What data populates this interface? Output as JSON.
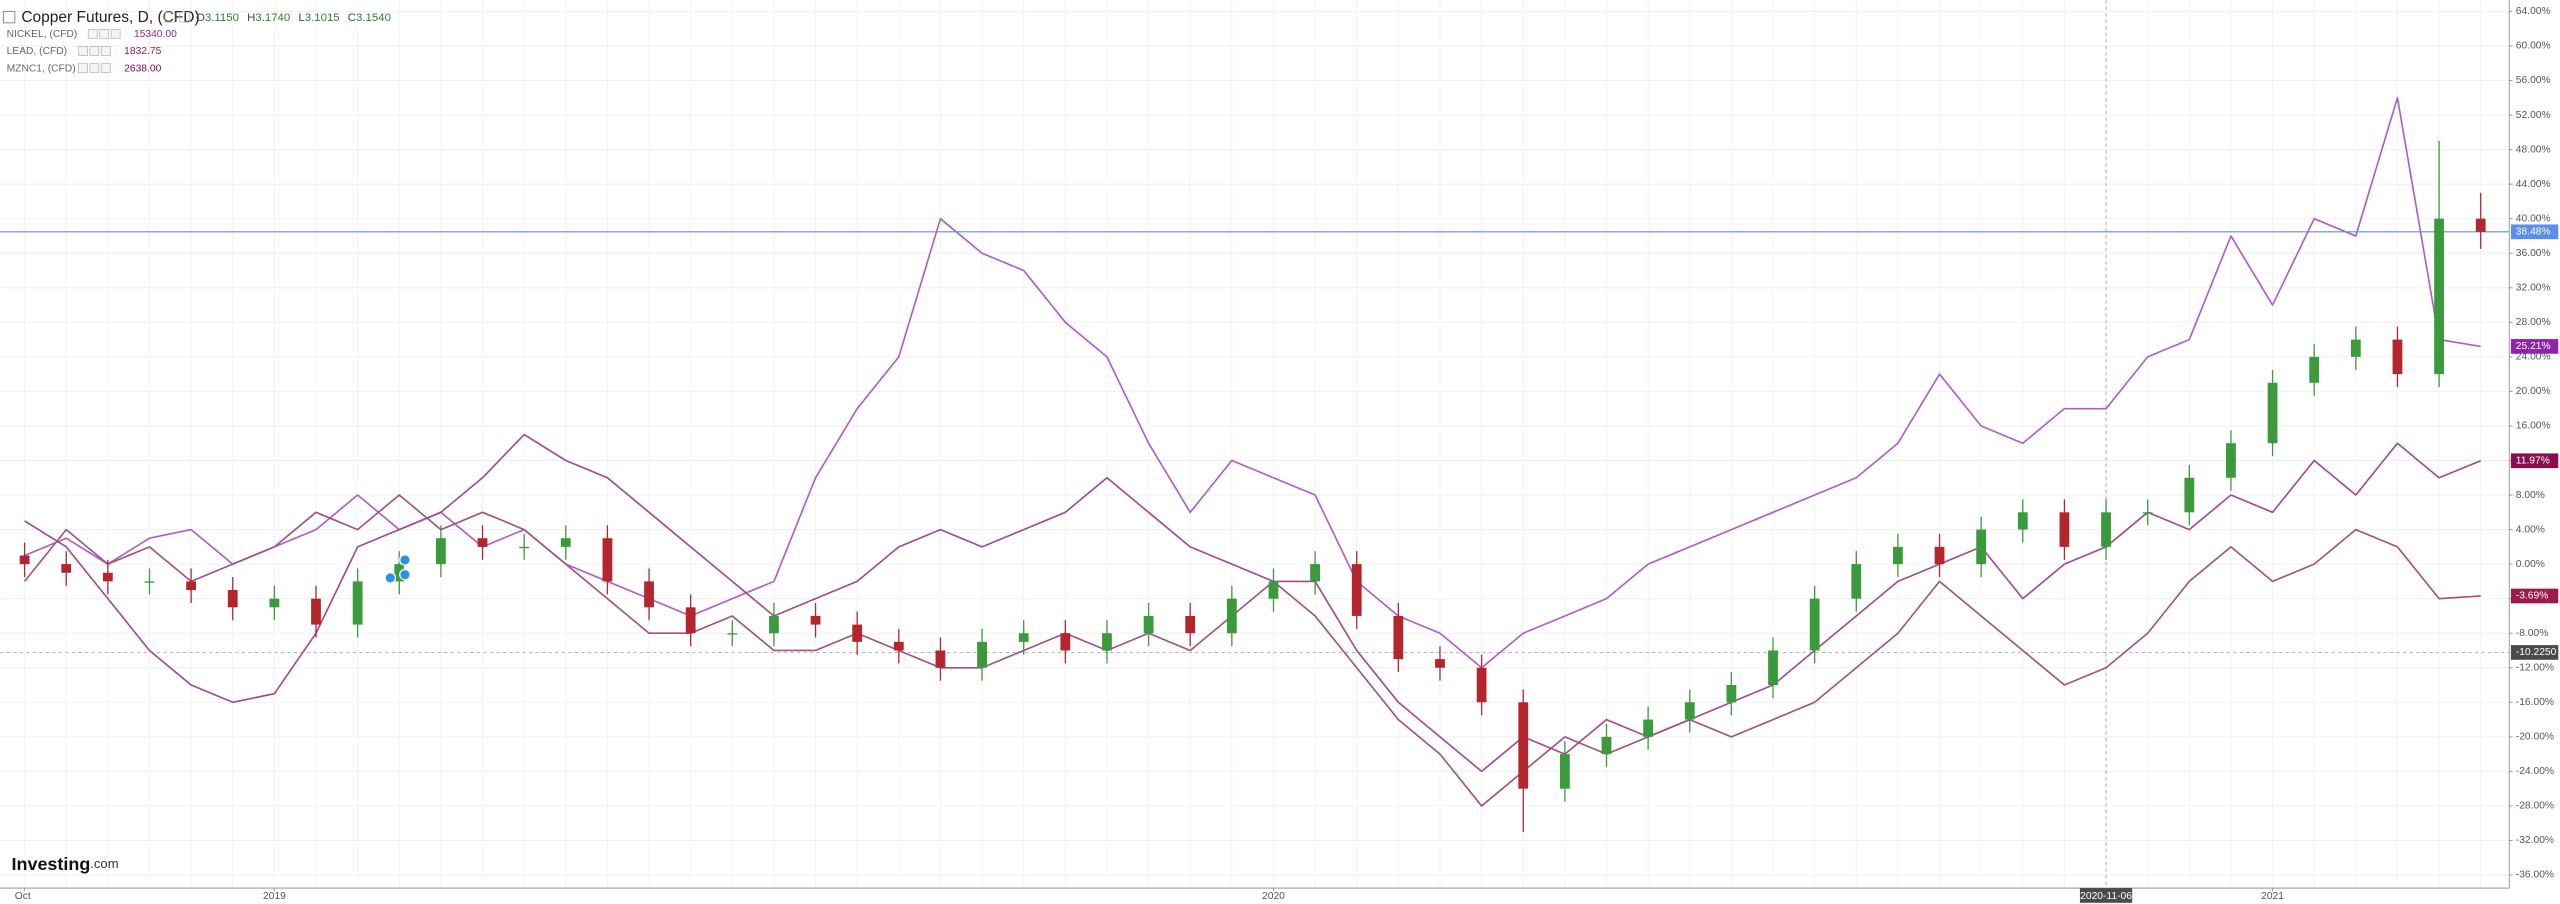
{
  "chart_data": {
    "type": "candlestick",
    "title": "Copper Futures, D, (CFD)",
    "ohlc_header": [
      {
        "key": "O",
        "value": "3.1150"
      },
      {
        "key": "H",
        "value": "3.1740"
      },
      {
        "key": "L",
        "value": "3.1015"
      },
      {
        "key": "C",
        "value": "3.1540"
      }
    ],
    "categories": [
      "Oct",
      null,
      null,
      null,
      null,
      null,
      "2019",
      null,
      null,
      null,
      null,
      null,
      null,
      null,
      null,
      null,
      null,
      null,
      null,
      null,
      null,
      null,
      null,
      null,
      null,
      null,
      null,
      null,
      null,
      null,
      "2020",
      null,
      null,
      null,
      null,
      null,
      null,
      null,
      null,
      null,
      null,
      null,
      null,
      null,
      null,
      null,
      null,
      null,
      null,
      null,
      "2020-11-06",
      null,
      null,
      null,
      "2021",
      null,
      null,
      null,
      null,
      null
    ],
    "ohlc": {
      "up_color": "#3b9a3b",
      "down_color": "#b3262e",
      "line_color": "#5b8def",
      "last_label": "38.48%",
      "open": [
        1,
        0,
        -1,
        -2,
        -2,
        -3,
        -5,
        -4,
        -7,
        -2,
        0,
        3,
        2,
        2,
        3,
        -2,
        -5,
        -8,
        -8,
        -6,
        -7,
        -9,
        -10,
        -12,
        -9,
        -8,
        -10,
        -8,
        -6,
        -8,
        -4,
        -2,
        0,
        -6,
        -11,
        -12,
        -16,
        -26,
        -22,
        -20,
        -18,
        -16,
        -14,
        -10,
        -4,
        0,
        2,
        0,
        4,
        6,
        2,
        6,
        6,
        10,
        14,
        21,
        24,
        26,
        22,
        40
      ],
      "high": [
        2.5,
        1.5,
        0.5,
        -0.5,
        -0.5,
        -1.5,
        -2.5,
        -2.5,
        -0.5,
        1.5,
        4.5,
        4.5,
        3.5,
        4.5,
        4.5,
        -0.5,
        -3.5,
        -6.5,
        -4.5,
        -4.5,
        -5.5,
        -7.5,
        -8.5,
        -7.5,
        -6.5,
        -6.5,
        -6.5,
        -4.5,
        -4.5,
        -2.5,
        -0.5,
        1.5,
        1.5,
        -4.5,
        -9.5,
        -10.5,
        -14.5,
        -20.5,
        -18.5,
        -16.5,
        -14.5,
        -12.5,
        -8.5,
        -2.5,
        1.5,
        3.5,
        3.5,
        5.5,
        7.5,
        7.5,
        7.5,
        7.5,
        11.5,
        15.5,
        22.5,
        25.5,
        27.5,
        27.5,
        49,
        43
      ],
      "low": [
        -1.5,
        -2.5,
        -3.5,
        -3.5,
        -4.5,
        -6.5,
        -6.5,
        -8.5,
        -8.5,
        -3.5,
        -1.5,
        0.5,
        0.5,
        0.5,
        -3.5,
        -6.5,
        -9.5,
        -9.5,
        -9.5,
        -8.5,
        -10.5,
        -11.5,
        -13.5,
        -13.5,
        -10.5,
        -11.5,
        -11.5,
        -9.5,
        -9.5,
        -9.5,
        -5.5,
        -3.5,
        -7.5,
        -12.5,
        -13.5,
        -17.5,
        -31,
        -27.5,
        -23.5,
        -21.5,
        -19.5,
        -17.5,
        -15.5,
        -11.5,
        -5.5,
        -1.5,
        -1.5,
        -1.5,
        2.5,
        0.5,
        0.5,
        4.5,
        4.5,
        8.5,
        12.5,
        19.5,
        22.5,
        20.5,
        20.5,
        36.5
      ],
      "close": [
        0,
        -1,
        -2,
        -2,
        -3,
        -5,
        -4,
        -7,
        -2,
        0,
        3,
        2,
        2,
        3,
        -2,
        -5,
        -8,
        -8,
        -6,
        -7,
        -9,
        -10,
        -12,
        -9,
        -8,
        -10,
        -8,
        -6,
        -8,
        -4,
        -2,
        0,
        -6,
        -11,
        -12,
        -16,
        -26,
        -22,
        -20,
        -18,
        -16,
        -14,
        -10,
        -4,
        0,
        2,
        0,
        4,
        6,
        2,
        6,
        6,
        10,
        14,
        21,
        24,
        26,
        22,
        40,
        38.48
      ]
    },
    "series": [
      {
        "name": "NICKEL, (CFD)",
        "price": "15340.00",
        "color": "#b05cc8",
        "badge_color": "#8e24aa",
        "last_label": "25.21%",
        "values": [
          1,
          3,
          0,
          3,
          4,
          0,
          2,
          4,
          8,
          4,
          6,
          2,
          4,
          0,
          -2,
          -4,
          -6,
          -4,
          -2,
          10,
          18,
          24,
          40,
          36,
          34,
          28,
          24,
          14,
          6,
          12,
          10,
          8,
          -2,
          -6,
          -8,
          -12,
          -8,
          -6,
          -4,
          0,
          2,
          4,
          6,
          8,
          10,
          14,
          22,
          16,
          14,
          18,
          18,
          24,
          26,
          38,
          30,
          40,
          38,
          54,
          26,
          25.21
        ]
      },
      {
        "name": "LEAD, (CFD)",
        "price": "1832.75",
        "color": "#a0527c",
        "badge_color": "#9b1b4b",
        "last_label": "-3.69%",
        "values": [
          -2,
          4,
          0,
          2,
          -2,
          0,
          2,
          6,
          4,
          8,
          4,
          6,
          4,
          0,
          -4,
          -8,
          -8,
          -6,
          -10,
          -10,
          -8,
          -10,
          -12,
          -12,
          -10,
          -8,
          -10,
          -8,
          -10,
          -6,
          -2,
          -6,
          -12,
          -18,
          -22,
          -28,
          -24,
          -20,
          -22,
          -20,
          -18,
          -20,
          -18,
          -16,
          -12,
          -8,
          -2,
          -6,
          -10,
          -14,
          -12,
          -8,
          -2,
          2,
          -2,
          0,
          4,
          2,
          -4,
          -3.69
        ]
      },
      {
        "name": "MZNC1, (CFD)",
        "price": "2638.00",
        "color": "#a14a8c",
        "badge_color": "#880e4f",
        "last_label": "11.97%",
        "values": [
          5,
          2,
          -4,
          -10,
          -14,
          -16,
          -15,
          -8,
          2,
          4,
          6,
          10,
          15,
          12,
          10,
          6,
          2,
          -2,
          -6,
          -4,
          -2,
          2,
          4,
          2,
          4,
          6,
          10,
          6,
          2,
          0,
          -2,
          -2,
          -10,
          -16,
          -20,
          -24,
          -20,
          -22,
          -18,
          -20,
          -18,
          -16,
          -14,
          -10,
          -6,
          -2,
          0,
          2,
          -4,
          0,
          2,
          6,
          4,
          8,
          6,
          12,
          8,
          14,
          10,
          11.97
        ]
      }
    ],
    "crosshair": {
      "x": "2020-11-06",
      "y": {
        "value": -10.225,
        "label": "-10.2250"
      }
    },
    "ylim": [
      -36,
      64
    ],
    "yticks": [
      {
        "value": 64,
        "label": "64.00%"
      },
      {
        "value": 60,
        "label": "60.00%"
      },
      {
        "value": 56,
        "label": "56.00%"
      },
      {
        "value": 52,
        "label": "52.00%"
      },
      {
        "value": 48,
        "label": "48.00%"
      },
      {
        "value": 44,
        "label": "44.00%"
      },
      {
        "value": 40,
        "label": "40.00%"
      },
      {
        "value": 36,
        "label": "36.00%"
      },
      {
        "value": 32,
        "label": "32.00%"
      },
      {
        "value": 28,
        "label": "28.00%"
      },
      {
        "value": 24,
        "label": "24.00%"
      },
      {
        "value": 20,
        "label": "20.00%"
      },
      {
        "value": 16,
        "label": "16.00%"
      },
      {
        "value": 12,
        "label": "12.00%"
      },
      {
        "value": 8,
        "label": "8.00%"
      },
      {
        "value": 4,
        "label": "4.00%"
      },
      {
        "value": 0,
        "label": "0.00%"
      },
      {
        "value": -4,
        "label": "-4.00%"
      },
      {
        "value": -8,
        "label": "-8.00%"
      },
      {
        "value": -12,
        "label": "-12.00%"
      },
      {
        "value": -16,
        "label": "-16.00%"
      },
      {
        "value": -20,
        "label": "-20.00%"
      },
      {
        "value": -24,
        "label": "-24.00%"
      },
      {
        "value": -28,
        "label": "-28.00%"
      },
      {
        "value": -32,
        "label": "-32.00%"
      },
      {
        "value": -36,
        "label": "-36.00%"
      }
    ],
    "grid": true,
    "watermark": [
      "Investing",
      ".com"
    ]
  }
}
